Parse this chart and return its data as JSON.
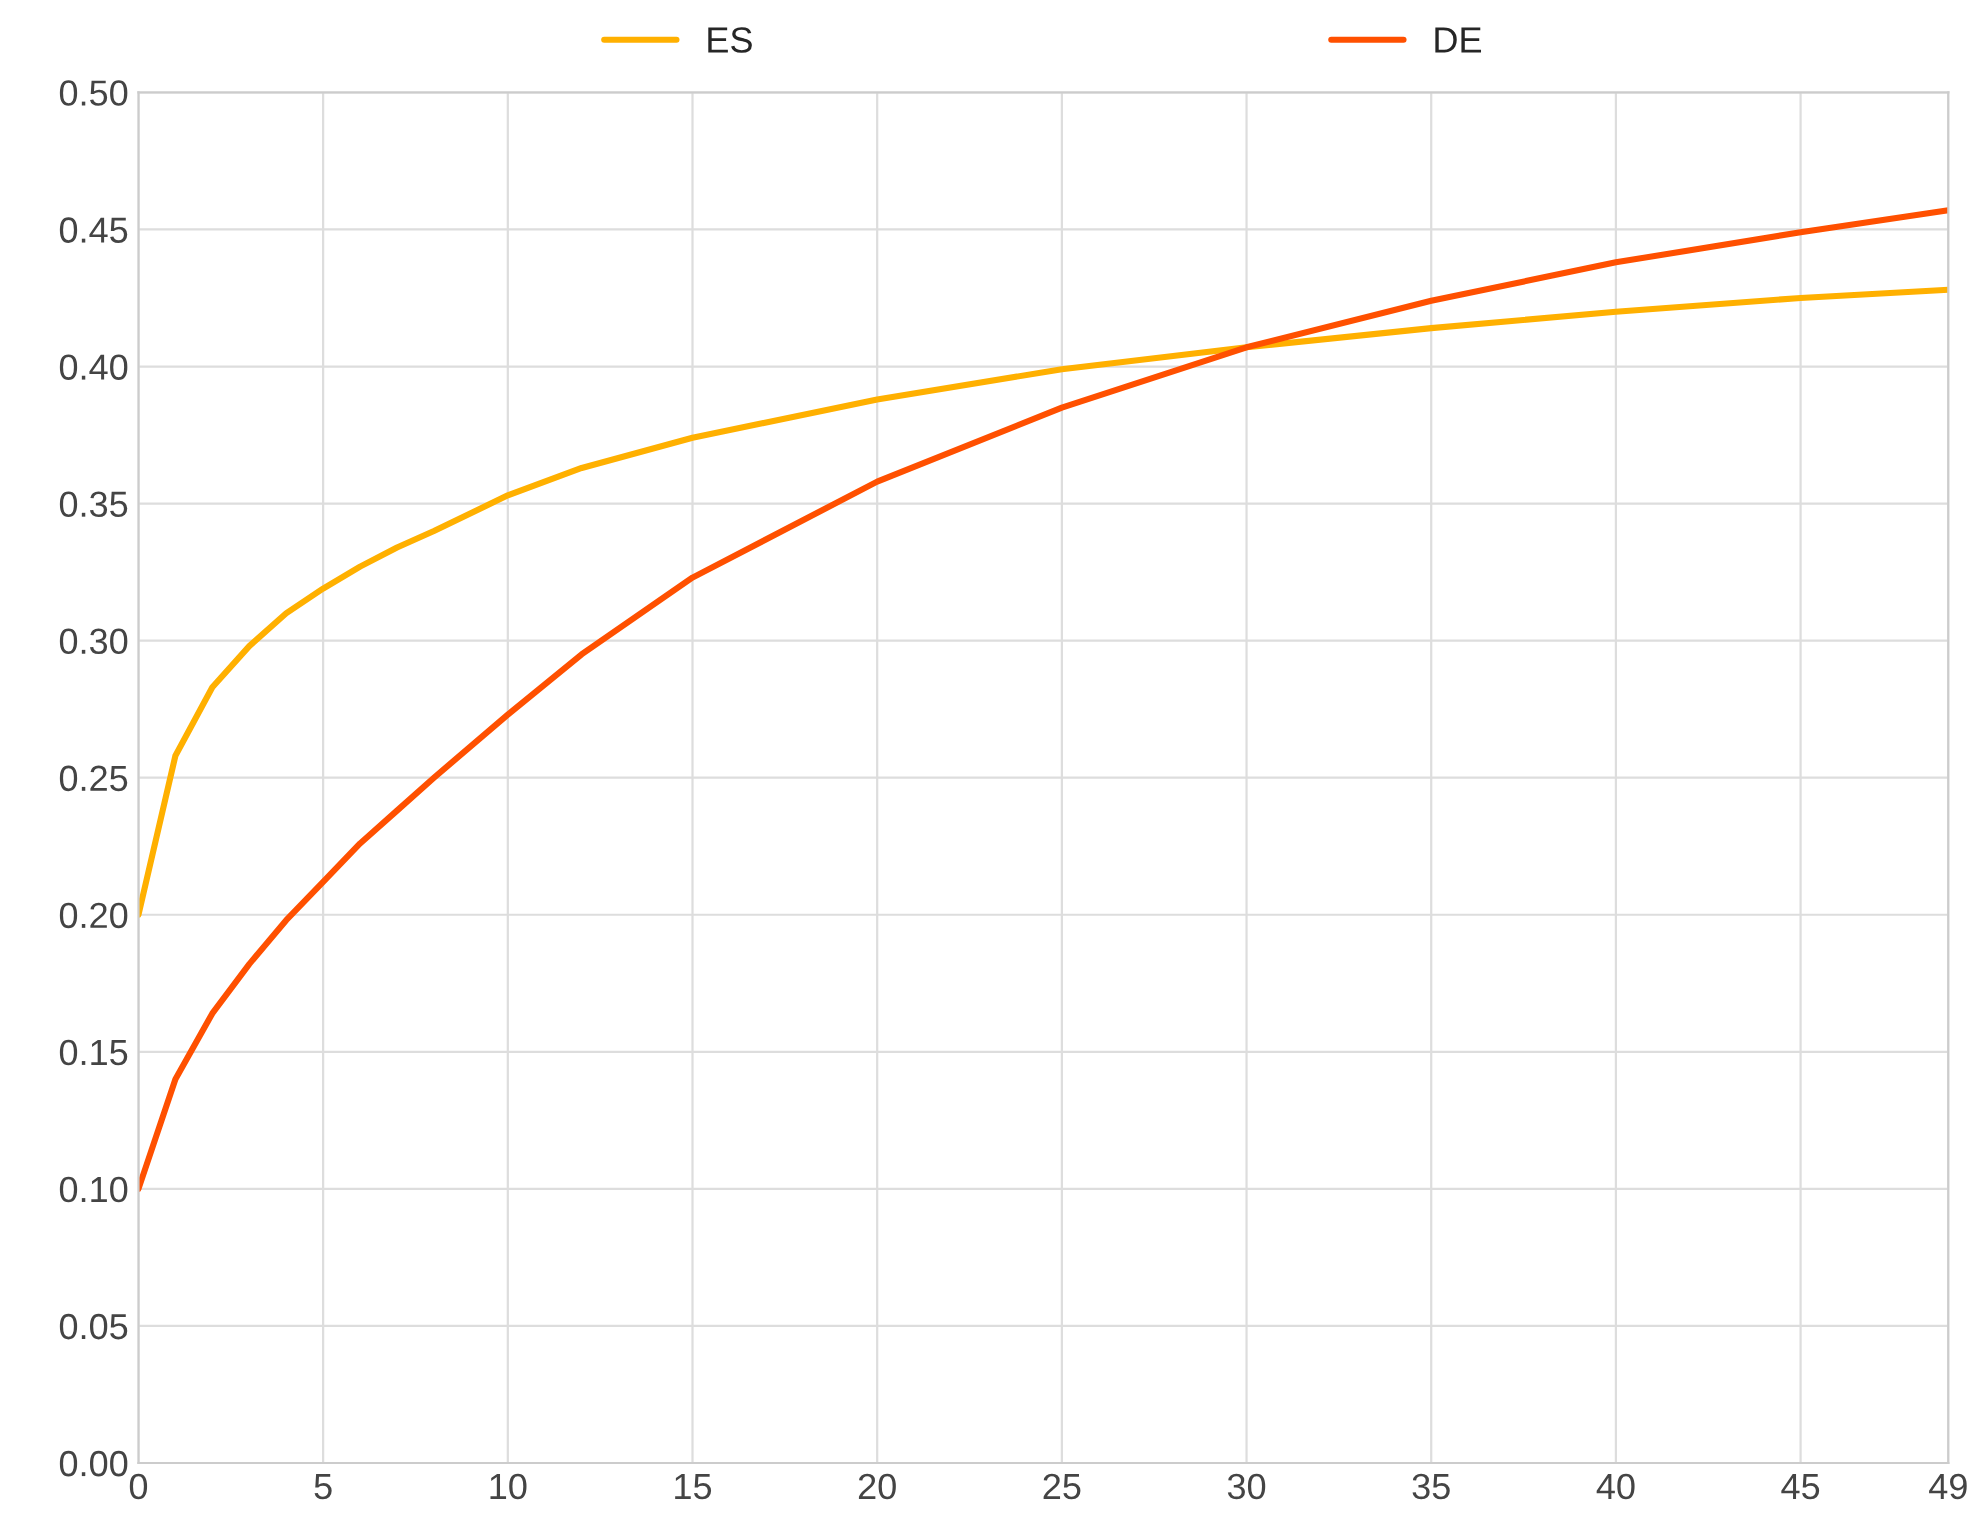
{
  "chart_data": {
    "type": "line",
    "x": [
      0,
      1,
      2,
      3,
      4,
      5,
      6,
      7,
      8,
      10,
      12,
      15,
      20,
      25,
      30,
      35,
      40,
      45,
      49
    ],
    "series": [
      {
        "name": "ES",
        "color": "#ffb000",
        "values": [
          0.2,
          0.258,
          0.283,
          0.298,
          0.31,
          0.319,
          0.327,
          0.334,
          0.34,
          0.353,
          0.363,
          0.374,
          0.388,
          0.399,
          0.407,
          0.414,
          0.42,
          0.425,
          0.428
        ]
      },
      {
        "name": "DE",
        "color": "#ff5000",
        "values": [
          0.1,
          0.14,
          0.164,
          0.182,
          0.198,
          0.212,
          0.226,
          0.238,
          0.25,
          0.273,
          0.295,
          0.323,
          0.358,
          0.385,
          0.407,
          0.424,
          0.438,
          0.449,
          0.457
        ]
      }
    ],
    "xlim": [
      0,
      49
    ],
    "xticks": [
      0,
      5,
      10,
      15,
      20,
      25,
      30,
      35,
      40,
      45,
      49
    ],
    "ylim": [
      0,
      0.5
    ],
    "yticks": [
      {
        "value": 0,
        "label": "0.00"
      },
      {
        "value": 0.05,
        "label": "0.05"
      },
      {
        "value": 0.1,
        "label": "0.10"
      },
      {
        "value": 0.15,
        "label": "0.15"
      },
      {
        "value": 0.2,
        "label": "0.20"
      },
      {
        "value": 0.25,
        "label": "0.25"
      },
      {
        "value": 0.3,
        "label": "0.30"
      },
      {
        "value": 0.35,
        "label": "0.35"
      },
      {
        "value": 0.4,
        "label": "0.40"
      },
      {
        "value": 0.45,
        "label": "0.45"
      },
      {
        "value": 0.5,
        "label": "0.50"
      }
    ],
    "grid": true,
    "legend": "top",
    "marker": "none",
    "line_style": "solid"
  }
}
